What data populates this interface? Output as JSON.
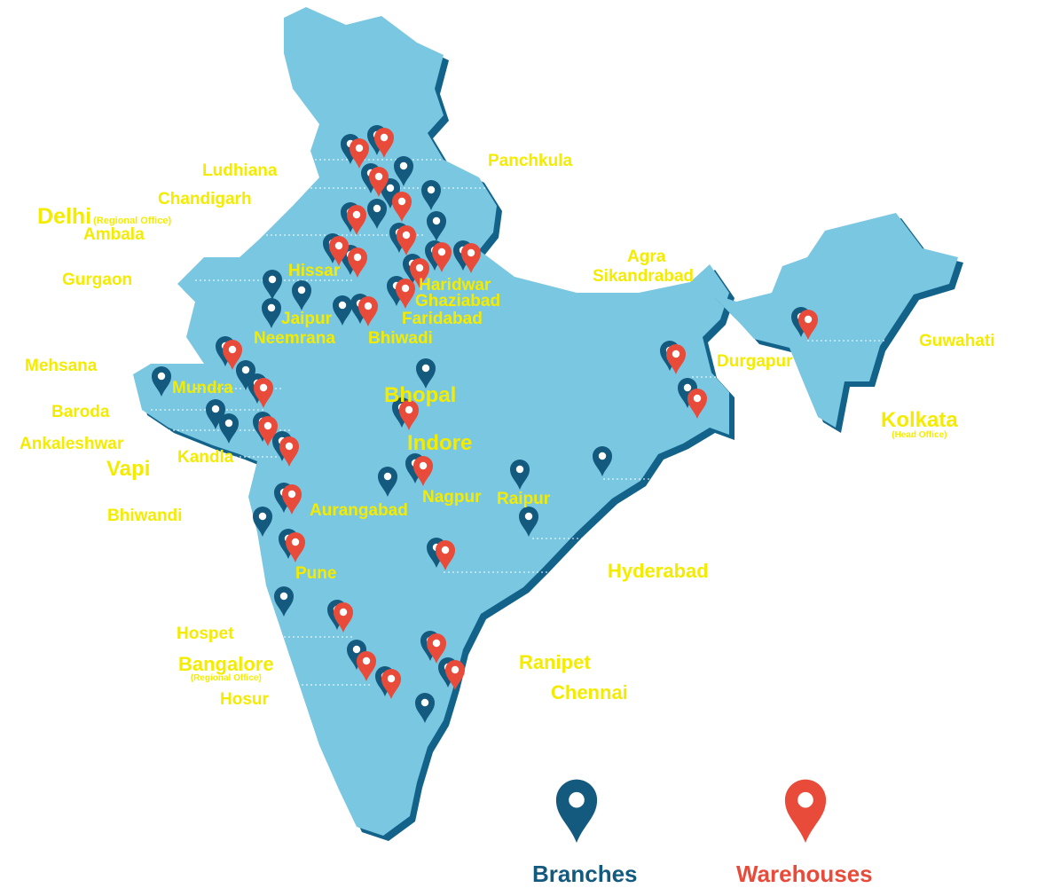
{
  "colors": {
    "land": "#7ac7e2",
    "shadow": "#136289",
    "branch": "#135a7e",
    "warehouse": "#e84b3a",
    "label": "#f4ec00"
  },
  "cities": [
    {
      "name": "Ludhiana"
    },
    {
      "name": "Panchkula"
    },
    {
      "name": "Chandigarh"
    },
    {
      "name": "Delhi",
      "note": "(Regional Office)"
    },
    {
      "name": "Ambala"
    },
    {
      "name": "Gurgaon"
    },
    {
      "name": "Hissar"
    },
    {
      "name": "Haridwar"
    },
    {
      "name": "Ghaziabad"
    },
    {
      "name": "Faridabad"
    },
    {
      "name": "Jaipur"
    },
    {
      "name": "Neemrana"
    },
    {
      "name": "Bhiwadi"
    },
    {
      "name": "Agra"
    },
    {
      "name": "Sikandrabad"
    },
    {
      "name": "Mehsana"
    },
    {
      "name": "Mundra"
    },
    {
      "name": "Baroda"
    },
    {
      "name": "Ankaleshwar"
    },
    {
      "name": "Kandla"
    },
    {
      "name": "Vapi"
    },
    {
      "name": "Bhopal"
    },
    {
      "name": "Indore"
    },
    {
      "name": "Durgapur"
    },
    {
      "name": "Guwahati"
    },
    {
      "name": "Kolkata",
      "note": "(Head Office)"
    },
    {
      "name": "Bhiwandi"
    },
    {
      "name": "Aurangabad"
    },
    {
      "name": "Nagpur"
    },
    {
      "name": "Raipur"
    },
    {
      "name": "Pune"
    },
    {
      "name": "Hyderabad"
    },
    {
      "name": "Hospet"
    },
    {
      "name": "Bangalore",
      "note": "(Regional Office)"
    },
    {
      "name": "Hosur"
    },
    {
      "name": "Ranipet"
    },
    {
      "name": "Chennai"
    }
  ],
  "legend": {
    "branches": "Branches",
    "warehouses": "Warehouses"
  }
}
